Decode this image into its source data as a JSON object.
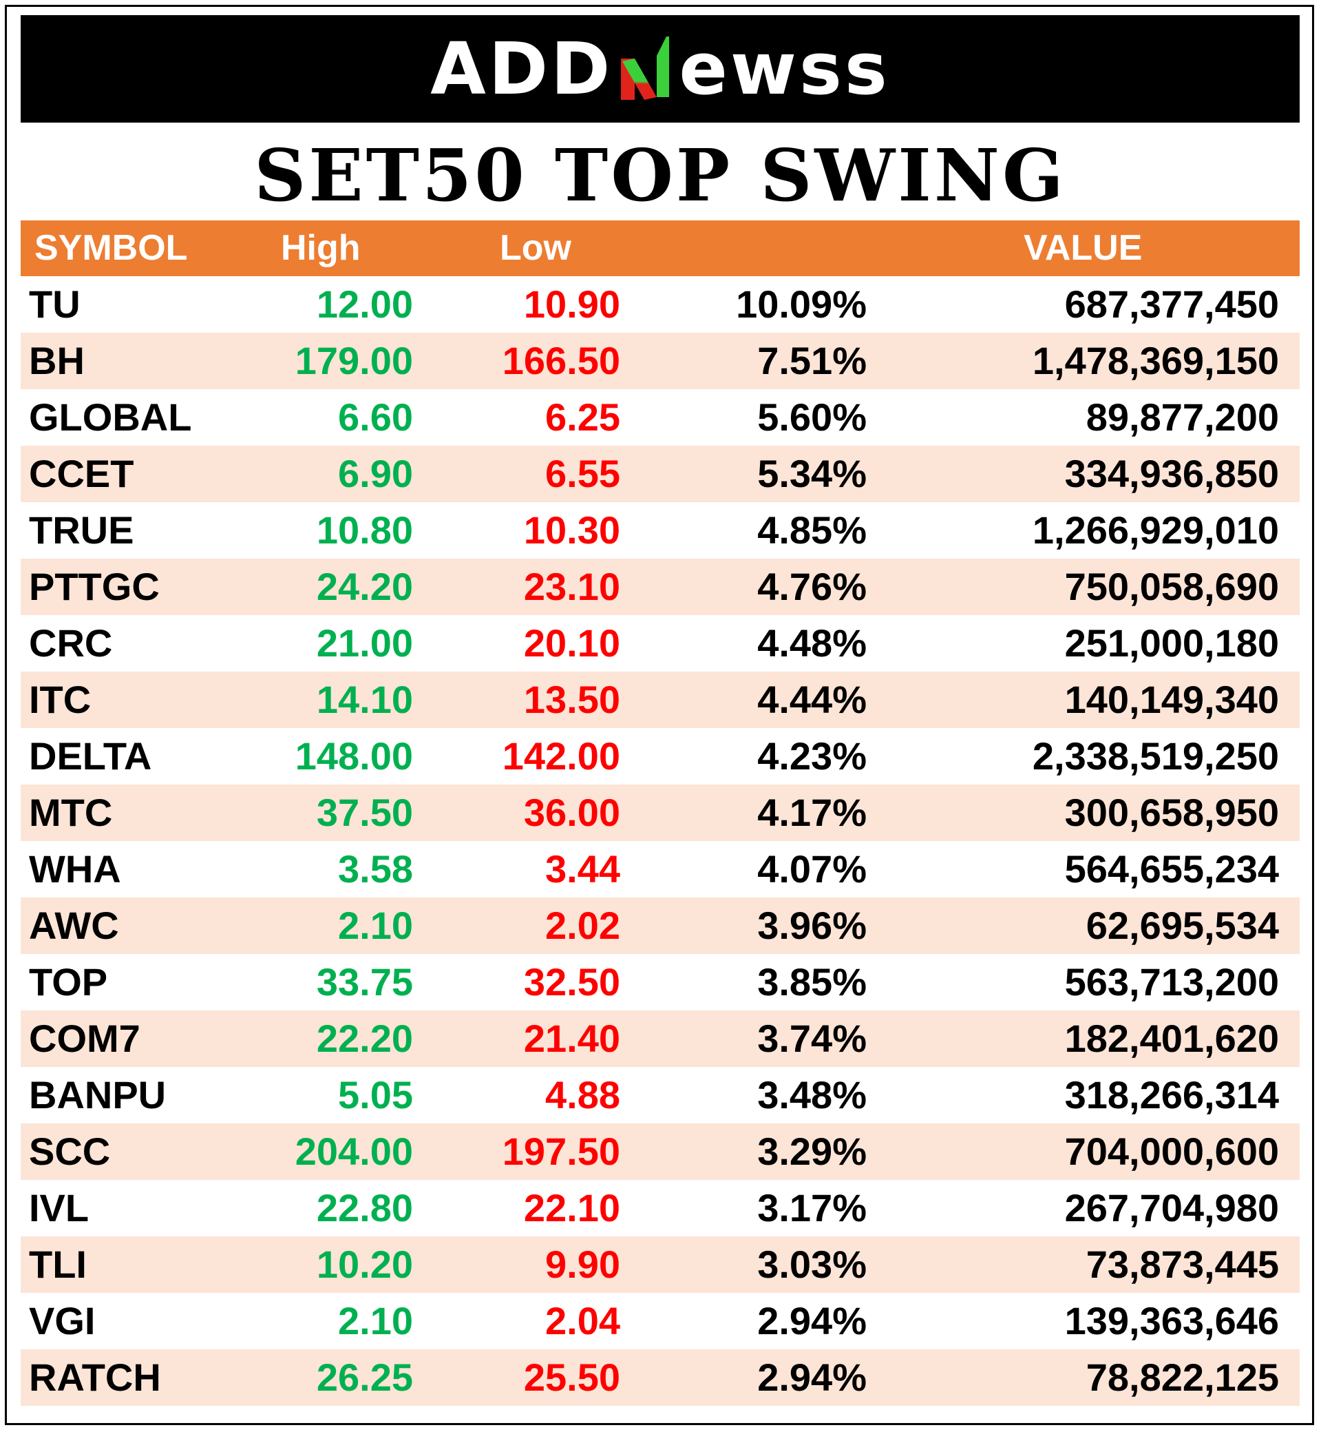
{
  "brand": {
    "left": "ADD",
    "n": "N",
    "right": "ewss",
    "colors": {
      "n_gradient_top": "#3ccf3c",
      "n_gradient_bottom": "#e0241c",
      "bar": "#000000"
    }
  },
  "title": "SET50 TOP SWING",
  "table": {
    "headers": {
      "symbol": "SYMBOL",
      "high": "High",
      "low": "Low",
      "pct": "",
      "value": "VALUE"
    },
    "colors": {
      "header_bg": "#ed7d31",
      "alt_row_bg": "#fce4d6",
      "high": "#00b050",
      "low": "#ff0000"
    },
    "rows": [
      {
        "symbol": "TU",
        "high": "12.00",
        "low": "10.90",
        "pct": "10.09%",
        "value": "687,377,450"
      },
      {
        "symbol": "BH",
        "high": "179.00",
        "low": "166.50",
        "pct": "7.51%",
        "value": "1,478,369,150"
      },
      {
        "symbol": "GLOBAL",
        "high": "6.60",
        "low": "6.25",
        "pct": "5.60%",
        "value": "89,877,200"
      },
      {
        "symbol": "CCET",
        "high": "6.90",
        "low": "6.55",
        "pct": "5.34%",
        "value": "334,936,850"
      },
      {
        "symbol": "TRUE",
        "high": "10.80",
        "low": "10.30",
        "pct": "4.85%",
        "value": "1,266,929,010"
      },
      {
        "symbol": "PTTGC",
        "high": "24.20",
        "low": "23.10",
        "pct": "4.76%",
        "value": "750,058,690"
      },
      {
        "symbol": "CRC",
        "high": "21.00",
        "low": "20.10",
        "pct": "4.48%",
        "value": "251,000,180"
      },
      {
        "symbol": "ITC",
        "high": "14.10",
        "low": "13.50",
        "pct": "4.44%",
        "value": "140,149,340"
      },
      {
        "symbol": "DELTA",
        "high": "148.00",
        "low": "142.00",
        "pct": "4.23%",
        "value": "2,338,519,250"
      },
      {
        "symbol": "MTC",
        "high": "37.50",
        "low": "36.00",
        "pct": "4.17%",
        "value": "300,658,950"
      },
      {
        "symbol": "WHA",
        "high": "3.58",
        "low": "3.44",
        "pct": "4.07%",
        "value": "564,655,234"
      },
      {
        "symbol": "AWC",
        "high": "2.10",
        "low": "2.02",
        "pct": "3.96%",
        "value": "62,695,534"
      },
      {
        "symbol": "TOP",
        "high": "33.75",
        "low": "32.50",
        "pct": "3.85%",
        "value": "563,713,200"
      },
      {
        "symbol": "COM7",
        "high": "22.20",
        "low": "21.40",
        "pct": "3.74%",
        "value": "182,401,620"
      },
      {
        "symbol": "BANPU",
        "high": "5.05",
        "low": "4.88",
        "pct": "3.48%",
        "value": "318,266,314"
      },
      {
        "symbol": "SCC",
        "high": "204.00",
        "low": "197.50",
        "pct": "3.29%",
        "value": "704,000,600"
      },
      {
        "symbol": "IVL",
        "high": "22.80",
        "low": "22.10",
        "pct": "3.17%",
        "value": "267,704,980"
      },
      {
        "symbol": "TLI",
        "high": "10.20",
        "low": "9.90",
        "pct": "3.03%",
        "value": "73,873,445"
      },
      {
        "symbol": "VGI",
        "high": "2.10",
        "low": "2.04",
        "pct": "2.94%",
        "value": "139,363,646"
      },
      {
        "symbol": "RATCH",
        "high": "26.25",
        "low": "25.50",
        "pct": "2.94%",
        "value": "78,822,125"
      }
    ]
  }
}
